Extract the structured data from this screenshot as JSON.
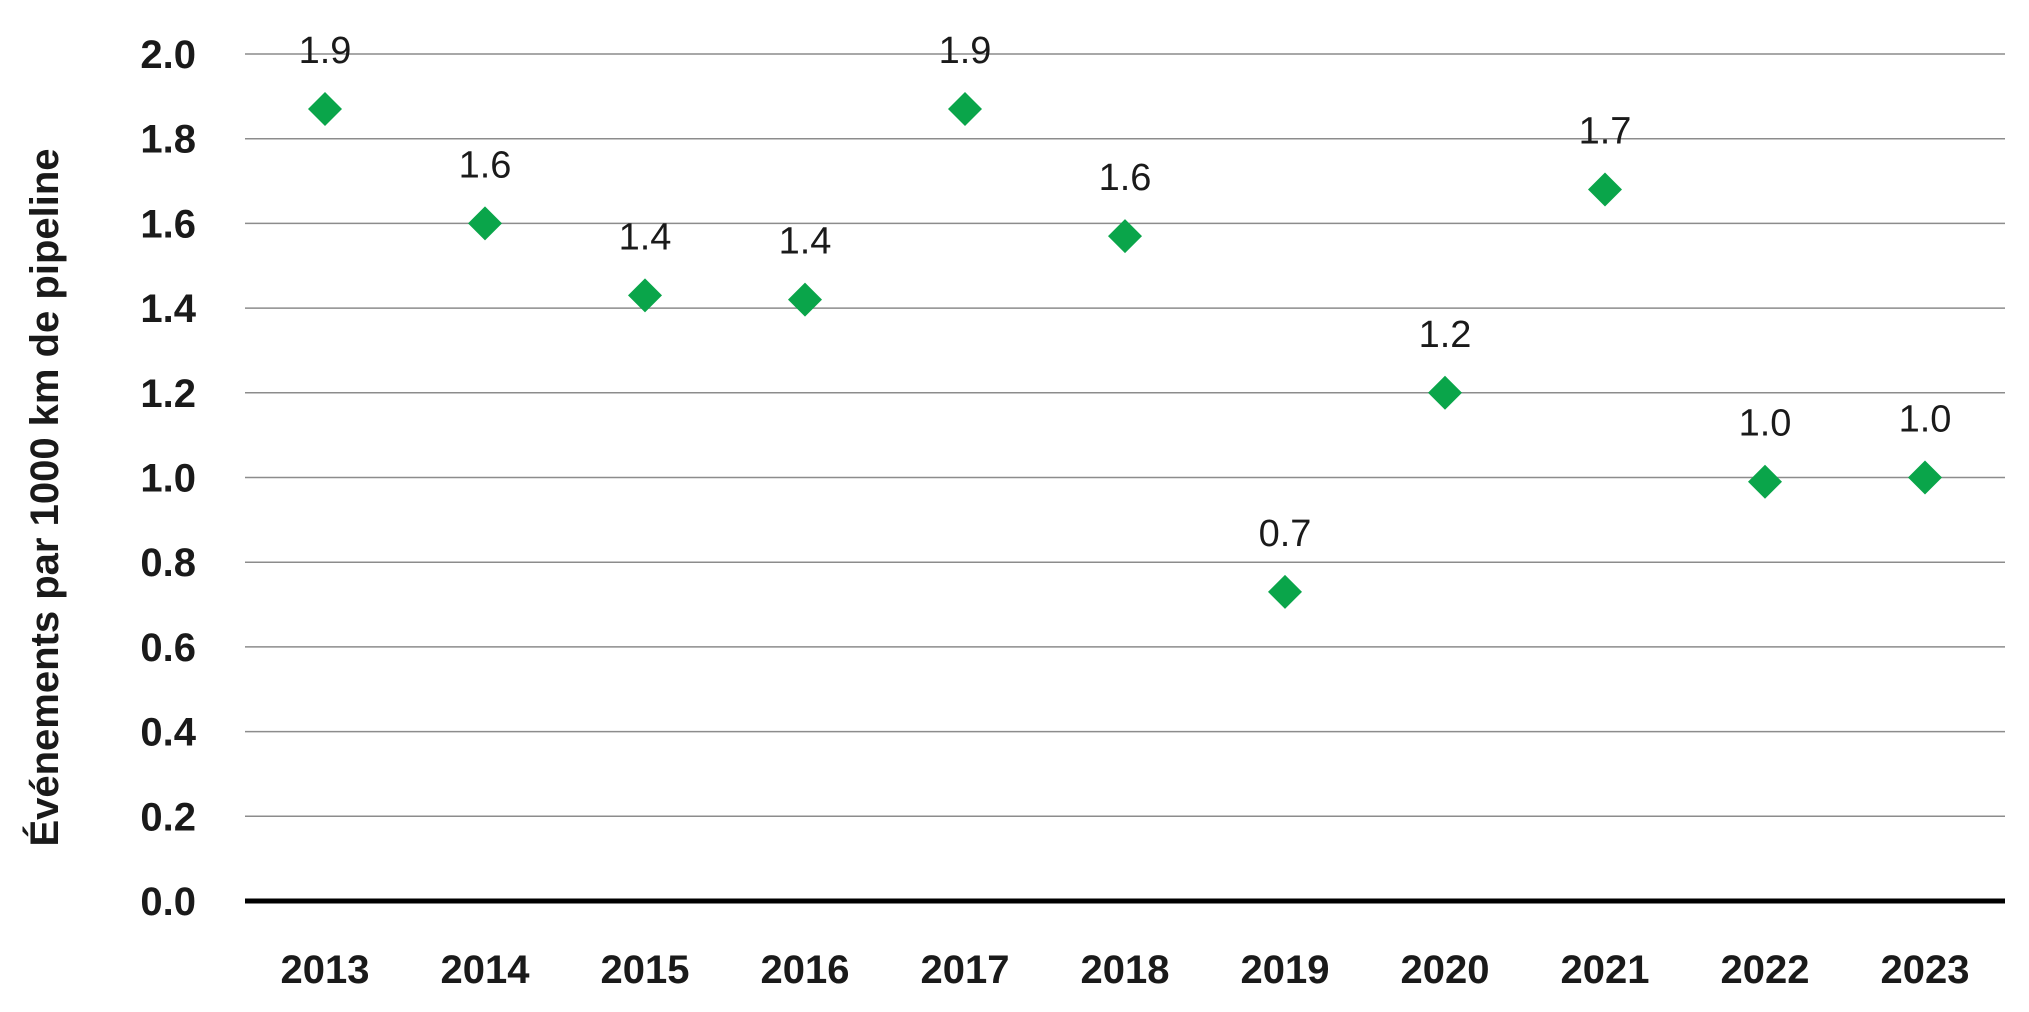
{
  "chart_data": {
    "type": "scatter",
    "categories": [
      "2013",
      "2014",
      "2015",
      "2016",
      "2017",
      "2018",
      "2019",
      "2020",
      "2021",
      "2022",
      "2023"
    ],
    "values": [
      1.87,
      1.6,
      1.43,
      1.42,
      1.87,
      1.57,
      0.73,
      1.2,
      1.68,
      0.99,
      1.0
    ],
    "data_labels": [
      "1.9",
      "1.6",
      "1.4",
      "1.4",
      "1.9",
      "1.6",
      "0.7",
      "1.2",
      "1.7",
      "1.0",
      "1.0"
    ],
    "y_ticks": [
      "0.0",
      "0.2",
      "0.4",
      "0.6",
      "0.8",
      "1.0",
      "1.2",
      "1.4",
      "1.6",
      "1.8",
      "2.0"
    ],
    "title": "",
    "xlabel": "",
    "ylabel": "Événements par 1000 km de pipeline",
    "ylim": [
      0,
      2.0
    ],
    "grid": true,
    "legend": "none",
    "marker": "diamond",
    "marker_color": "#0aa54a"
  }
}
